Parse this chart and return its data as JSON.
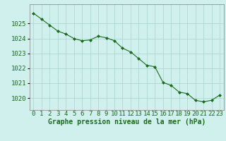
{
  "x": [
    0,
    1,
    2,
    3,
    4,
    5,
    6,
    7,
    8,
    9,
    10,
    11,
    12,
    13,
    14,
    15,
    16,
    17,
    18,
    19,
    20,
    21,
    22,
    23
  ],
  "y": [
    1025.7,
    1025.3,
    1024.9,
    1024.5,
    1024.3,
    1024.0,
    1023.85,
    1023.9,
    1024.15,
    1024.05,
    1023.85,
    1023.35,
    1023.1,
    1022.65,
    1022.2,
    1022.1,
    1021.05,
    1020.85,
    1020.4,
    1020.3,
    1019.85,
    1019.75,
    1019.85,
    1020.2
  ],
  "line_color": "#1a6b1a",
  "marker": "D",
  "marker_size": 2.0,
  "bg_color": "#d0f0ee",
  "grid_color": "#b0d8d4",
  "xlabel": "Graphe pression niveau de la mer (hPa)",
  "xlabel_fontsize": 7,
  "tick_fontsize": 6.5,
  "ylim": [
    1019.2,
    1026.3
  ],
  "yticks": [
    1020,
    1021,
    1022,
    1023,
    1024,
    1025
  ],
  "xticks": [
    0,
    1,
    2,
    3,
    4,
    5,
    6,
    7,
    8,
    9,
    10,
    11,
    12,
    13,
    14,
    15,
    16,
    17,
    18,
    19,
    20,
    21,
    22,
    23
  ],
  "spine_color": "#808080"
}
